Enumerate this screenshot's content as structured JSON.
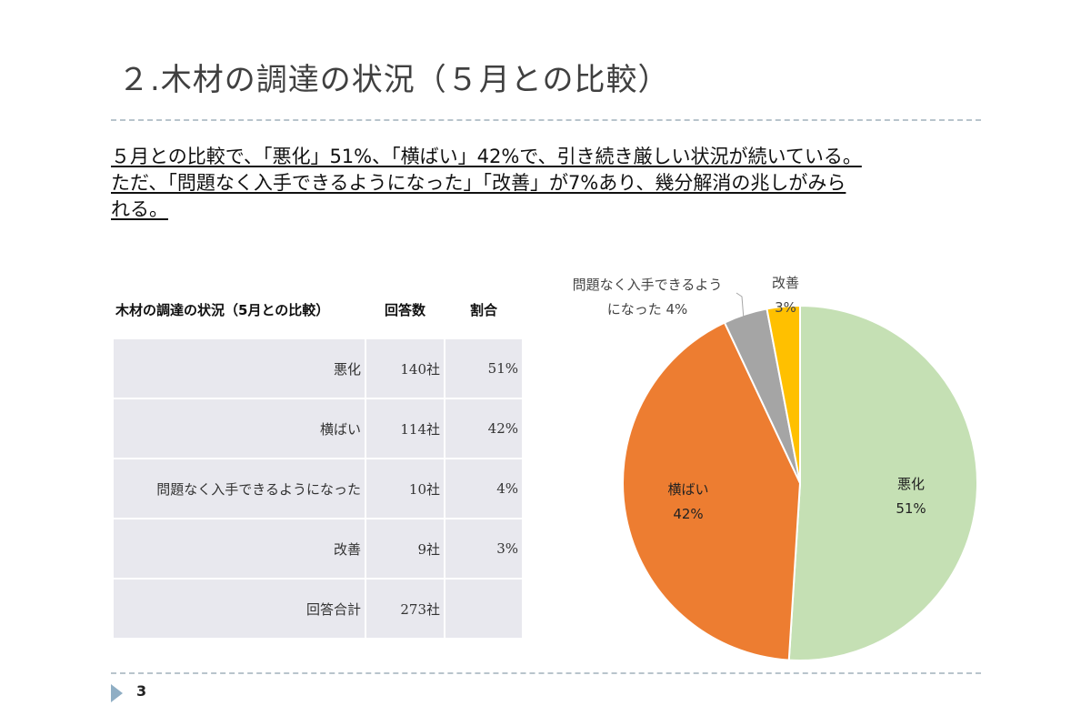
{
  "slide": {
    "title": "２.木材の調達の状況（５月との比較）",
    "summary_lines": [
      "５月との比較で、「悪化」51%、「横ばい」42%で、引き続き厳しい状況が続いている。",
      "ただ、「問題なく入手できるようになった」「改善」が7%あり、幾分解消の兆しがみら",
      "れる。"
    ],
    "page_number": "3"
  },
  "table": {
    "headers": [
      "木材の調達の状況（5月との比較）",
      "回答数",
      "割合"
    ],
    "rows": [
      {
        "label": "悪化",
        "count": "140社",
        "ratio": "51%"
      },
      {
        "label": "横ばい",
        "count": "114社",
        "ratio": "42%"
      },
      {
        "label": "問題なく入手できるようになった",
        "count": "10社",
        "ratio": "4%"
      },
      {
        "label": "改善",
        "count": "9社",
        "ratio": "3%"
      },
      {
        "label": "回答合計",
        "count": "273社",
        "ratio": ""
      }
    ]
  },
  "chart_data": {
    "type": "pie",
    "categories": [
      "悪化",
      "横ばい",
      "問題なく入手できるようになった",
      "改善"
    ],
    "values": [
      51,
      42,
      4,
      3
    ],
    "data_labels": [
      {
        "lines": [
          "悪化",
          "51%"
        ]
      },
      {
        "lines": [
          "横ばい",
          "42%"
        ]
      },
      {
        "lines": [
          "問題なく入手できるよう",
          "になった 4%"
        ]
      },
      {
        "lines": [
          "改善",
          "3%"
        ]
      }
    ],
    "colors": [
      "#c5e0b4",
      "#ed7d31",
      "#a5a5a5",
      "#ffc000"
    ],
    "start_angle_deg": 0,
    "direction": "clockwise"
  }
}
